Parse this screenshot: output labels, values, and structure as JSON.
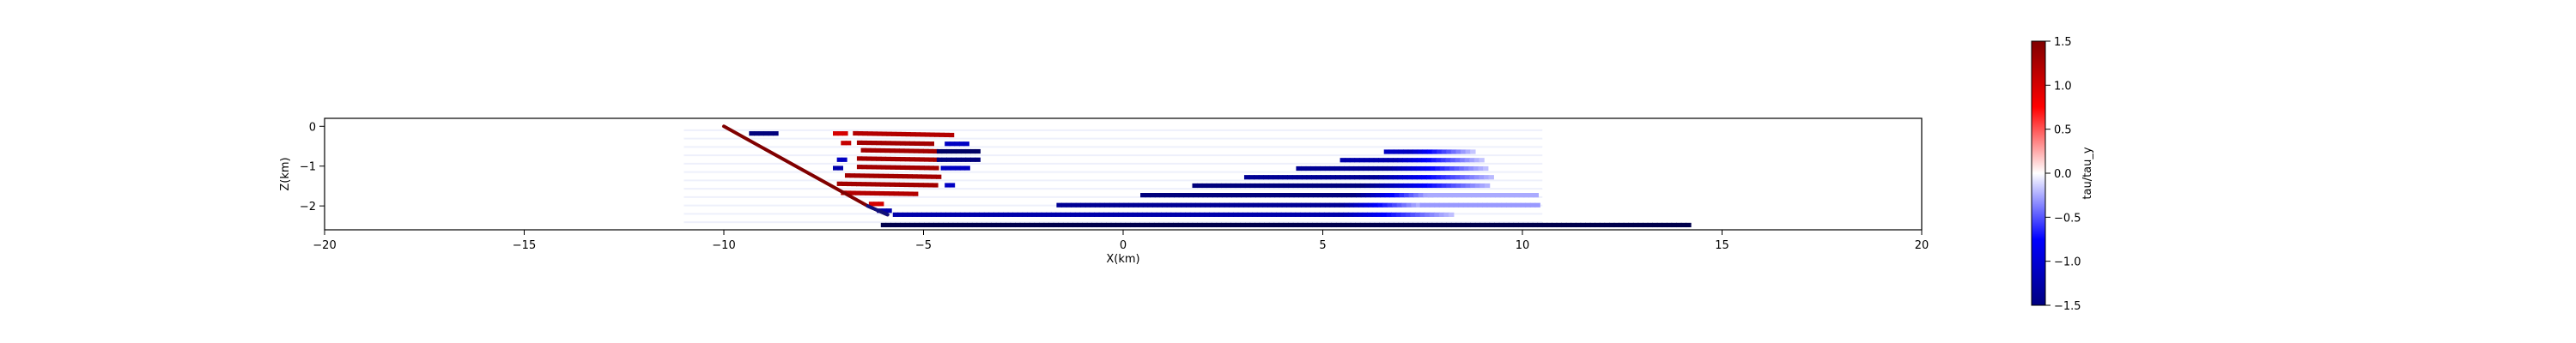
{
  "chart_data": {
    "type": "scatter",
    "title": "",
    "xlabel": "X(km)",
    "ylabel": "Z(km)",
    "xlim": [
      -20,
      20
    ],
    "ylim": [
      -2.6,
      0.2
    ],
    "xticks": [
      -20,
      -15,
      -10,
      -5,
      0,
      5,
      10,
      15,
      20
    ],
    "yticks": [
      0,
      -1,
      -2
    ],
    "grid": false,
    "colormap": "seismic",
    "colorbar": {
      "label": "tau/tau_y",
      "range": [
        -1.5,
        1.5
      ],
      "ticks": [
        1.5,
        1.0,
        0.5,
        0.0,
        -0.5,
        -1.0,
        -1.5
      ]
    },
    "fault_line": {
      "points": [
        [
          -10,
          0.0
        ],
        [
          -6.4,
          -2.0
        ],
        [
          -5.9,
          -2.22
        ]
      ],
      "value": 1.5
    },
    "strands": [
      {
        "z": -0.18,
        "x0": -9.3,
        "x1": -8.6,
        "value": -1.3
      },
      {
        "z": -0.18,
        "x0": -7.2,
        "x1": -6.9,
        "value": 1.0
      },
      {
        "z": -0.22,
        "x0": -6.7,
        "x1": -4.3,
        "value": 1.2,
        "slope": 0.06
      },
      {
        "z": -0.42,
        "x0": -7.0,
        "x1": -6.8,
        "value": 1.1
      },
      {
        "z": -0.44,
        "x0": -6.6,
        "x1": -4.7,
        "value": 1.3,
        "slope": 0.05
      },
      {
        "z": -0.44,
        "x0": -4.4,
        "x1": -3.9,
        "value": -1.0
      },
      {
        "z": -0.63,
        "x0": -6.5,
        "x1": -4.6,
        "value": 1.3,
        "slope": 0.05
      },
      {
        "z": -0.63,
        "x0": -4.6,
        "x1": -3.6,
        "value": -1.4
      },
      {
        "z": -0.84,
        "x0": -7.1,
        "x1": -6.9,
        "value": -1.0
      },
      {
        "z": -0.84,
        "x0": -6.6,
        "x1": -4.6,
        "value": 1.3,
        "slope": 0.05
      },
      {
        "z": -0.84,
        "x0": -4.6,
        "x1": -3.6,
        "value": -1.3
      },
      {
        "z": -1.05,
        "x0": -7.2,
        "x1": -7.0,
        "value": -1.1
      },
      {
        "z": -1.05,
        "x0": -6.6,
        "x1": -4.6,
        "value": 1.3,
        "slope": 0.05
      },
      {
        "z": -1.05,
        "x0": -4.5,
        "x1": -3.9,
        "value": -1.0
      },
      {
        "z": -1.27,
        "x0": -6.9,
        "x1": -4.6,
        "value": 1.3,
        "slope": 0.05
      },
      {
        "z": -1.48,
        "x0": -7.1,
        "x1": -4.7,
        "value": 1.3,
        "slope": 0.05
      },
      {
        "z": -1.48,
        "x0": -4.4,
        "x1": -4.2,
        "value": -1.0
      },
      {
        "z": -1.7,
        "x0": -7.0,
        "x1": -5.1,
        "value": 1.2,
        "slope": 0.05
      },
      {
        "z": -1.95,
        "x0": -6.3,
        "x1": -6.0,
        "value": 1.0
      },
      {
        "z": -2.12,
        "x0": -6.1,
        "x1": -5.8,
        "value": -1.1
      },
      {
        "z": -2.48,
        "x0": -6.0,
        "x1": 14.2,
        "value": -1.5
      },
      {
        "z": -2.22,
        "x0": -5.7,
        "x1": 8.3,
        "value": -1.1,
        "fade_from": 5.5
      },
      {
        "z": -1.98,
        "x0": -1.6,
        "x1": 7.5,
        "value": -1.2,
        "fade_from": 5.5
      },
      {
        "z": -1.98,
        "x0": 7.5,
        "x1": 10.4,
        "value": -0.3
      },
      {
        "z": -1.73,
        "x0": 0.5,
        "x1": 7.7,
        "value": -1.3,
        "fade_from": 5.8
      },
      {
        "z": -1.73,
        "x0": 7.7,
        "x1": 10.4,
        "value": -0.25
      },
      {
        "z": -1.49,
        "x0": 1.8,
        "x1": 9.2,
        "value": -1.3,
        "fade_from": 6.0
      },
      {
        "z": -1.28,
        "x0": 3.1,
        "x1": 9.3,
        "value": -1.2,
        "fade_from": 6.3
      },
      {
        "z": -1.06,
        "x0": 4.4,
        "x1": 9.1,
        "value": -1.2,
        "fade_from": 6.6
      },
      {
        "z": -0.85,
        "x0": 5.5,
        "x1": 9.0,
        "value": -1.1,
        "fade_from": 6.8
      },
      {
        "z": -0.64,
        "x0": 6.6,
        "x1": 8.8,
        "value": -1.0,
        "fade_from": 7.2
      }
    ],
    "faint_markers_x0": -11.0,
    "faint_markers_x1": 10.5
  }
}
